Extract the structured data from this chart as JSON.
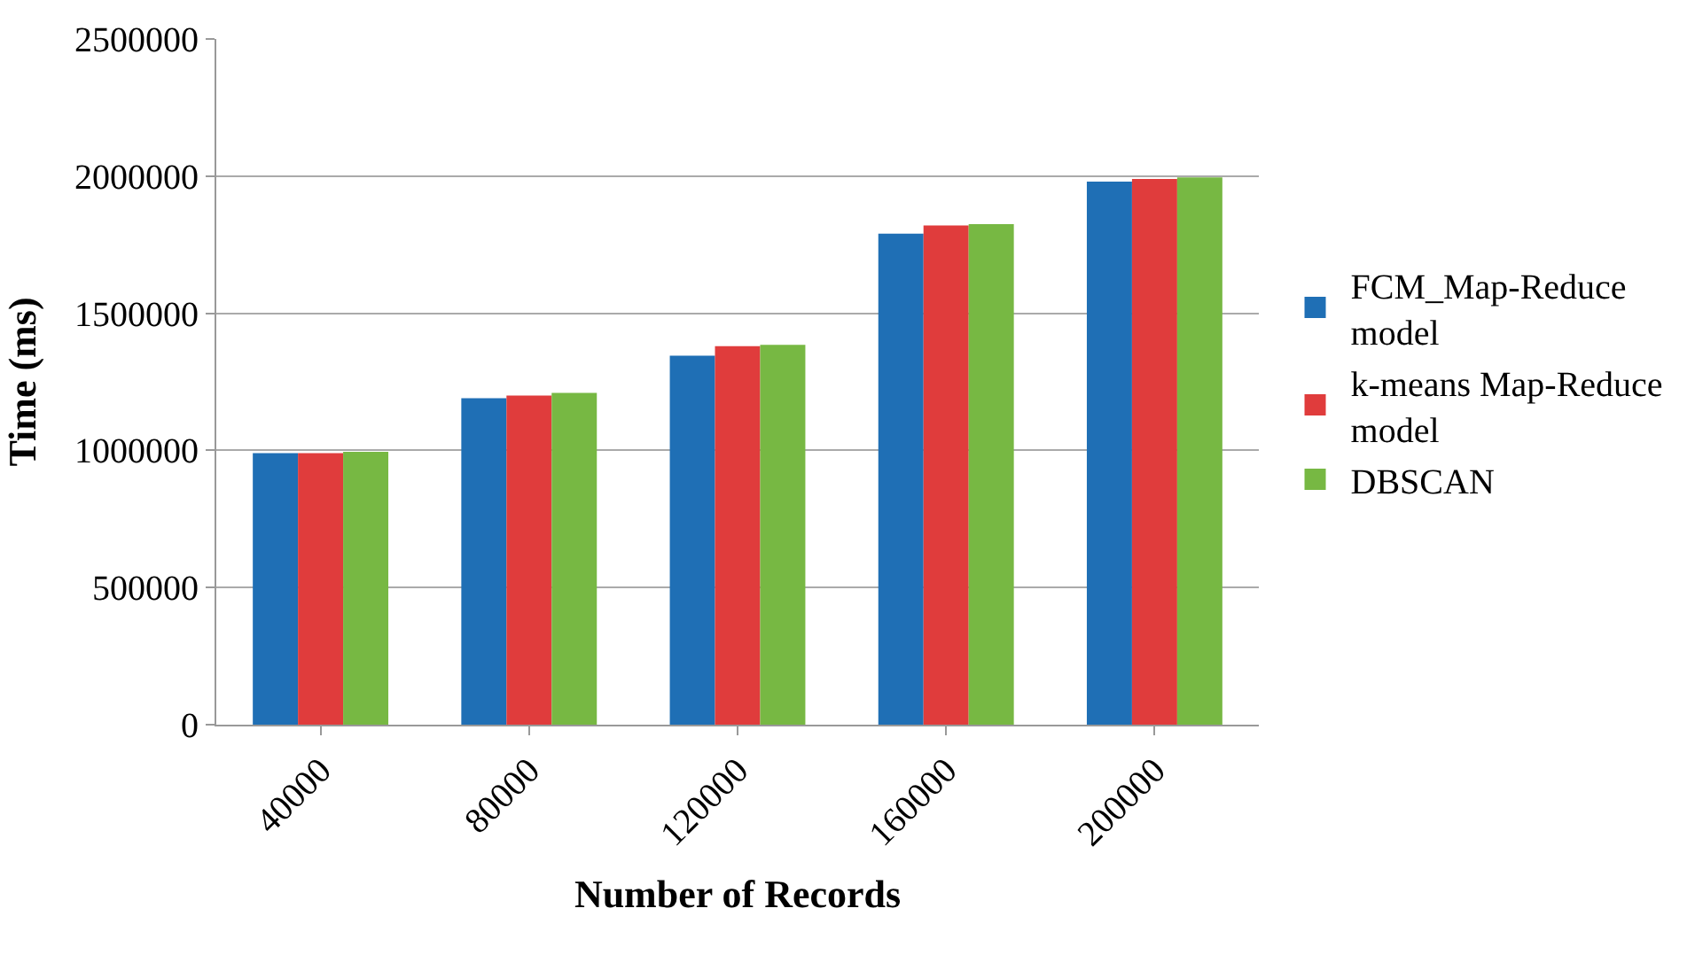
{
  "chart_data": {
    "type": "bar",
    "xlabel": "Number of Records",
    "ylabel": "Time (ms)",
    "categories": [
      "40000",
      "80000",
      "120000",
      "160000",
      "200000"
    ],
    "series": [
      {
        "name": "FCM_Map-Reduce model",
        "color": "#1f6fb5",
        "values": [
          990000,
          1190000,
          1345000,
          1790000,
          1980000
        ]
      },
      {
        "name": "k-means Map-Reduce model",
        "color": "#e03c3c",
        "values": [
          990000,
          1200000,
          1380000,
          1820000,
          1990000
        ]
      },
      {
        "name": "DBSCAN",
        "color": "#77b843",
        "values": [
          995000,
          1210000,
          1385000,
          1825000,
          1995000
        ]
      }
    ],
    "ylim": [
      0,
      2500000
    ],
    "yticks": [
      0,
      500000,
      1000000,
      1500000,
      2000000,
      2500000
    ],
    "grid": "y",
    "legend": "right"
  }
}
